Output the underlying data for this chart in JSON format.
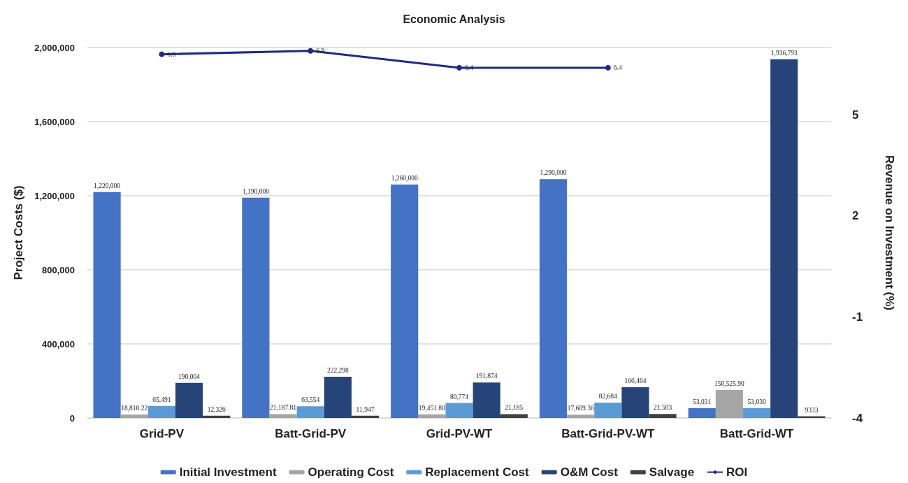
{
  "chart_data": {
    "type": "bar",
    "title": "Economic Analysis",
    "ylabel": "Project Costs ($)",
    "y2label": "Revenue on Investment (%)",
    "categories": [
      "Grid-PV",
      "Batt-Grid-PV",
      "Grid-PV-WT",
      "Batt-Grid-PV-WT",
      "Batt-Grid-WT"
    ],
    "series": [
      {
        "name": "Initial Investment",
        "color": "#4472c4",
        "values": [
          1220000,
          1190000,
          1260000,
          1290000,
          53031
        ],
        "value_labels": [
          "1,220,000",
          "1,190,000",
          "1,260,000",
          "1,290,000",
          "53,031"
        ]
      },
      {
        "name": "Operating Cost",
        "color": "#a5a5a5",
        "values": [
          18810.22,
          21187.81,
          19451.8,
          17609.36,
          150525.9
        ],
        "value_labels": [
          "18,810.22",
          "21,187.81",
          "19,451.80",
          "17,609.36",
          "150,525.90"
        ]
      },
      {
        "name": "Replacement Cost",
        "color": "#5b9bd5",
        "values": [
          65491,
          63554,
          80774,
          82684,
          53030
        ],
        "value_labels": [
          "65,491",
          "63,554",
          "80,774",
          "82,684",
          "53,030"
        ]
      },
      {
        "name": "O&M Cost",
        "color": "#264478",
        "values": [
          190004,
          222298,
          191874,
          166464,
          1936793
        ],
        "value_labels": [
          "190,004",
          "222,298",
          "191,874",
          "166,464",
          "1,936,793"
        ]
      },
      {
        "name": "Salvage",
        "color": "#404040",
        "values": [
          12326,
          11947,
          21185,
          21503,
          9333
        ],
        "value_labels": [
          "12,326",
          "11,947",
          "21,185",
          "21,503",
          "9333"
        ]
      },
      {
        "name": "ROI",
        "type": "line",
        "axis": "y2",
        "color": "#1f2a80",
        "values": [
          6.8,
          6.9,
          6.4,
          6.4,
          null
        ],
        "value_labels": [
          "6.8",
          "6.9",
          "6.4",
          "6.4",
          null
        ]
      }
    ],
    "ylim": [
      0,
      2000000
    ],
    "yticks": [
      {
        "value": 0,
        "label": "0"
      },
      {
        "value": 400000,
        "label": "400,000"
      },
      {
        "value": 800000,
        "label": "800,000"
      },
      {
        "value": 1200000,
        "label": "1,200,000"
      },
      {
        "value": 1600000,
        "label": "1,600,000"
      },
      {
        "value": 2000000,
        "label": "2,000,000"
      }
    ],
    "y2lim": [
      -4,
      7
    ],
    "y2ticks": [
      -4,
      -1,
      2,
      5
    ],
    "grid": "y",
    "legend": "bottom",
    "marker": "circle",
    "line_style": "solid"
  }
}
